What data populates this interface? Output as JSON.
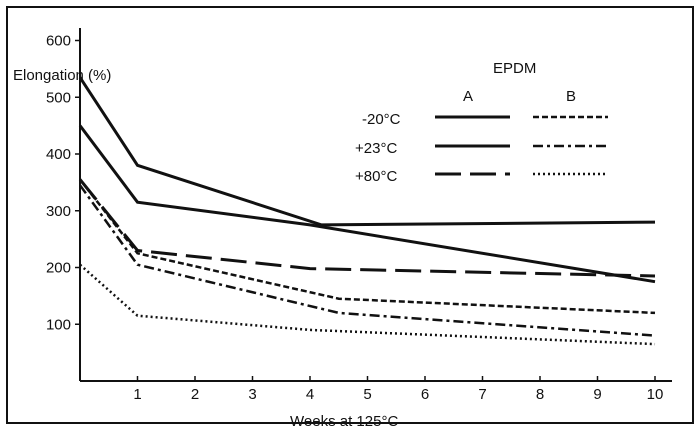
{
  "chart_data": {
    "type": "line",
    "ylabel": "Elongation (%)",
    "xlabel": "Weeks at 125°C",
    "xlim": [
      0,
      10
    ],
    "ylim": [
      0,
      600
    ],
    "x_ticks": [
      "1",
      "2",
      "3",
      "4",
      "5",
      "6",
      "7",
      "8",
      "9",
      "10"
    ],
    "y_ticks": [
      "100",
      "200",
      "300",
      "400",
      "500",
      "600"
    ],
    "legend": {
      "title": "EPDM",
      "columns": [
        "A",
        "B"
      ],
      "rows": [
        "-20°C",
        "+23°C",
        "+80°C"
      ],
      "placement": "top-right"
    },
    "series": [
      {
        "compound": "A",
        "temperature": "-20°C",
        "style": "solid",
        "x": [
          0,
          1,
          4.2,
          10
        ],
        "y": [
          535,
          380,
          275,
          280
        ]
      },
      {
        "compound": "A",
        "temperature": "+23°C",
        "style": "solid",
        "x": [
          0,
          1,
          4,
          10
        ],
        "y": [
          450,
          315,
          275,
          175
        ]
      },
      {
        "compound": "A",
        "temperature": "+80°C",
        "style": "long-dash",
        "x": [
          0,
          1,
          4,
          10
        ],
        "y": [
          355,
          230,
          198,
          185
        ]
      },
      {
        "compound": "B",
        "temperature": "-20°C",
        "style": "dense-dash",
        "x": [
          0,
          1,
          4.5,
          10
        ],
        "y": [
          355,
          225,
          145,
          120
        ]
      },
      {
        "compound": "B",
        "temperature": "+23°C",
        "style": "dash-dot",
        "x": [
          0,
          1,
          4.5,
          10
        ],
        "y": [
          345,
          205,
          120,
          80
        ]
      },
      {
        "compound": "B",
        "temperature": "+80°C",
        "style": "dotted",
        "x": [
          0,
          1,
          4,
          10
        ],
        "y": [
          205,
          115,
          90,
          65
        ]
      }
    ]
  }
}
